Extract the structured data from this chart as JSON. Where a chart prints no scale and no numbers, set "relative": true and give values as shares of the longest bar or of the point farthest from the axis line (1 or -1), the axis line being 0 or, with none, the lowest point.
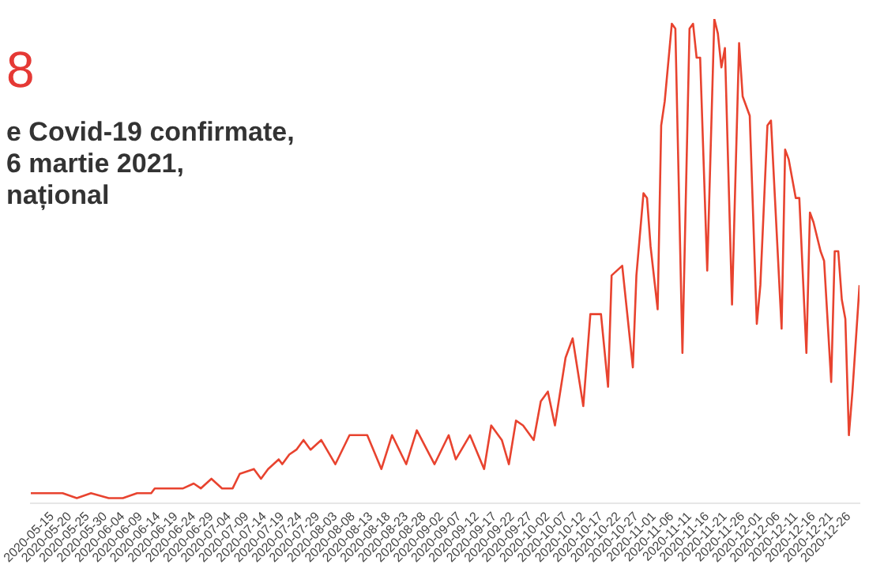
{
  "chart_data": {
    "type": "line",
    "title": "8",
    "subtitle": "e Covid-19 confirmate,\n6 martie 2021,\nnațional",
    "relative": true,
    "color": "#e8432f",
    "grid": false,
    "legend": false,
    "xlim": [
      "2020-05-09",
      "2020-12-29"
    ],
    "xticks": [
      "2020-05-15",
      "2020-05-20",
      "2020-05-25",
      "2020-05-30",
      "2020-06-04",
      "2020-06-09",
      "2020-06-14",
      "2020-06-19",
      "2020-06-24",
      "2020-06-29",
      "2020-07-04",
      "2020-07-09",
      "2020-07-14",
      "2020-07-19",
      "2020-07-24",
      "2020-07-29",
      "2020-08-03",
      "2020-08-08",
      "2020-08-13",
      "2020-08-18",
      "2020-08-23",
      "2020-08-28",
      "2020-09-02",
      "2020-09-07",
      "2020-09-12",
      "2020-09-17",
      "2020-09-22",
      "2020-09-27",
      "2020-10-02",
      "2020-10-07",
      "2020-10-12",
      "2020-10-17",
      "2020-10-22",
      "2020-10-27",
      "2020-11-01",
      "2020-11-06",
      "2020-11-11",
      "2020-11-16",
      "2020-11-21",
      "2020-11-26",
      "2020-12-01",
      "2020-12-06",
      "2020-12-11",
      "2020-12-16",
      "2020-12-21",
      "2020-12-26"
    ],
    "x": [
      "2020-05-09",
      "2020-05-14",
      "2020-05-18",
      "2020-05-22",
      "2020-05-26",
      "2020-05-31",
      "2020-06-04",
      "2020-06-08",
      "2020-06-12",
      "2020-06-13",
      "2020-06-17",
      "2020-06-21",
      "2020-06-24",
      "2020-06-26",
      "2020-06-29",
      "2020-07-02",
      "2020-07-05",
      "2020-07-07",
      "2020-07-11",
      "2020-07-13",
      "2020-07-15",
      "2020-07-18",
      "2020-07-19",
      "2020-07-21",
      "2020-07-23",
      "2020-07-25",
      "2020-07-27",
      "2020-07-30",
      "2020-08-03",
      "2020-08-07",
      "2020-08-12",
      "2020-08-16",
      "2020-08-19",
      "2020-08-23",
      "2020-08-26",
      "2020-08-31",
      "2020-09-04",
      "2020-09-06",
      "2020-09-10",
      "2020-09-14",
      "2020-09-16",
      "2020-09-19",
      "2020-09-21",
      "2020-09-23",
      "2020-09-25",
      "2020-09-28",
      "2020-09-30",
      "2020-10-02",
      "2020-10-04",
      "2020-10-07",
      "2020-10-09",
      "2020-10-12",
      "2020-10-14",
      "2020-10-17",
      "2020-10-19",
      "2020-10-20",
      "2020-10-23",
      "2020-10-26",
      "2020-10-27",
      "2020-10-29",
      "2020-10-30",
      "2020-10-31",
      "2020-11-02",
      "2020-11-03",
      "2020-11-04",
      "2020-11-06",
      "2020-11-07",
      "2020-11-09",
      "2020-11-11",
      "2020-11-12",
      "2020-11-13",
      "2020-11-14",
      "2020-11-16",
      "2020-11-18",
      "2020-11-19",
      "2020-11-20",
      "2020-11-21",
      "2020-11-23",
      "2020-11-25",
      "2020-11-26",
      "2020-11-28",
      "2020-11-30",
      "2020-12-01",
      "2020-12-03",
      "2020-12-04",
      "2020-12-07",
      "2020-12-08",
      "2020-12-09",
      "2020-12-11",
      "2020-12-12",
      "2020-12-14",
      "2020-12-15",
      "2020-12-16",
      "2020-12-18",
      "2020-12-19",
      "2020-12-21",
      "2020-12-22",
      "2020-12-23",
      "2020-12-24",
      "2020-12-25",
      "2020-12-26",
      "2020-12-27",
      "2020-12-29"
    ],
    "values": [
      0.02,
      0.02,
      0.02,
      0.01,
      0.02,
      0.01,
      0.01,
      0.02,
      0.02,
      0.03,
      0.03,
      0.03,
      0.04,
      0.03,
      0.05,
      0.03,
      0.03,
      0.06,
      0.07,
      0.05,
      0.07,
      0.09,
      0.08,
      0.1,
      0.11,
      0.13,
      0.11,
      0.13,
      0.08,
      0.14,
      0.14,
      0.07,
      0.14,
      0.08,
      0.15,
      0.08,
      0.14,
      0.09,
      0.14,
      0.07,
      0.16,
      0.13,
      0.08,
      0.17,
      0.16,
      0.13,
      0.21,
      0.23,
      0.16,
      0.3,
      0.34,
      0.2,
      0.39,
      0.39,
      0.24,
      0.47,
      0.49,
      0.28,
      0.47,
      0.64,
      0.63,
      0.53,
      0.4,
      0.78,
      0.83,
      0.99,
      0.98,
      0.31,
      0.98,
      0.99,
      0.92,
      0.92,
      0.48,
      1,
      0.97,
      0.9,
      0.94,
      0.41,
      0.95,
      0.84,
      0.8,
      0.37,
      0.45,
      0.78,
      0.79,
      0.36,
      0.73,
      0.71,
      0.63,
      0.63,
      0.31,
      0.6,
      0.58,
      0.52,
      0.5,
      0.25,
      0.52,
      0.52,
      0.42,
      0.38,
      0.14,
      0.23,
      0.45
    ]
  }
}
